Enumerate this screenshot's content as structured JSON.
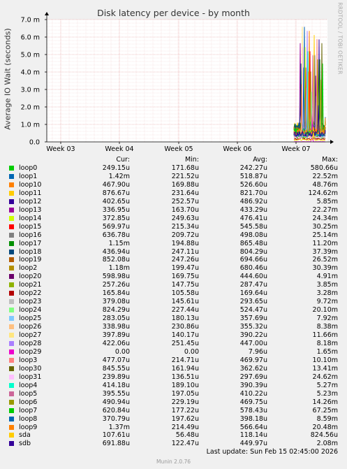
{
  "chart_data": {
    "type": "area",
    "title": "Disk latency per device - by month",
    "ylabel": "Average IO Wait (seconds)",
    "ylim": [
      0,
      0.007
    ],
    "y_ticks": [
      {
        "value": 0,
        "label": "0.0"
      },
      {
        "value": 0.001,
        "label": "1.0 m"
      },
      {
        "value": 0.002,
        "label": "2.0 m"
      },
      {
        "value": 0.003,
        "label": "3.0 m"
      },
      {
        "value": 0.004,
        "label": "4.0 m"
      },
      {
        "value": 0.005,
        "label": "5.0 m"
      },
      {
        "value": 0.006,
        "label": "6.0 m"
      },
      {
        "value": 0.007,
        "label": "7.0 m"
      }
    ],
    "x_ticks": [
      "Week 03",
      "Week 04",
      "Week 05",
      "Week 06",
      "Week 07"
    ],
    "grid": true,
    "legend_position": "bottom",
    "columns": [
      "Cur:",
      "Min:",
      "Avg:",
      "Max:"
    ],
    "series": [
      {
        "name": "loop0",
        "color": "#00cc00",
        "cur": "249.15u",
        "min": "171.68u",
        "avg": "242.27u",
        "max": "580.66u"
      },
      {
        "name": "loop1",
        "color": "#0066b3",
        "cur": "1.42m",
        "min": "221.52u",
        "avg": "518.87u",
        "max": "22.52m"
      },
      {
        "name": "loop10",
        "color": "#ff8000",
        "cur": "467.90u",
        "min": "169.88u",
        "avg": "526.60u",
        "max": "48.76m"
      },
      {
        "name": "loop11",
        "color": "#ffcc00",
        "cur": "876.67u",
        "min": "231.64u",
        "avg": "821.70u",
        "max": "124.62m"
      },
      {
        "name": "loop12",
        "color": "#330099",
        "cur": "402.65u",
        "min": "252.57u",
        "avg": "486.92u",
        "max": "5.85m"
      },
      {
        "name": "loop13",
        "color": "#990099",
        "cur": "336.95u",
        "min": "163.70u",
        "avg": "433.29u",
        "max": "22.27m"
      },
      {
        "name": "loop14",
        "color": "#ccff00",
        "cur": "372.85u",
        "min": "249.63u",
        "avg": "476.41u",
        "max": "24.34m"
      },
      {
        "name": "loop15",
        "color": "#ff0000",
        "cur": "569.97u",
        "min": "215.34u",
        "avg": "545.58u",
        "max": "30.25m"
      },
      {
        "name": "loop16",
        "color": "#808080",
        "cur": "636.78u",
        "min": "209.72u",
        "avg": "498.08u",
        "max": "25.14m"
      },
      {
        "name": "loop17",
        "color": "#008f00",
        "cur": "1.15m",
        "min": "194.88u",
        "avg": "865.48u",
        "max": "11.20m"
      },
      {
        "name": "loop18",
        "color": "#00487d",
        "cur": "436.94u",
        "min": "247.11u",
        "avg": "804.29u",
        "max": "37.39m"
      },
      {
        "name": "loop19",
        "color": "#b35a00",
        "cur": "852.08u",
        "min": "247.26u",
        "avg": "694.66u",
        "max": "26.52m"
      },
      {
        "name": "loop2",
        "color": "#b38f00",
        "cur": "1.18m",
        "min": "199.47u",
        "avg": "680.46u",
        "max": "30.39m"
      },
      {
        "name": "loop20",
        "color": "#6b006b",
        "cur": "598.98u",
        "min": "169.75u",
        "avg": "444.60u",
        "max": "4.91m"
      },
      {
        "name": "loop21",
        "color": "#8fb300",
        "cur": "257.26u",
        "min": "147.75u",
        "avg": "287.47u",
        "max": "3.85m"
      },
      {
        "name": "loop22",
        "color": "#b30000",
        "cur": "165.84u",
        "min": "105.58u",
        "avg": "169.64u",
        "max": "3.28m"
      },
      {
        "name": "loop23",
        "color": "#bebebe",
        "cur": "379.08u",
        "min": "145.61u",
        "avg": "293.65u",
        "max": "9.72m"
      },
      {
        "name": "loop24",
        "color": "#80ff80",
        "cur": "824.29u",
        "min": "227.44u",
        "avg": "524.47u",
        "max": "20.10m"
      },
      {
        "name": "loop25",
        "color": "#80c9ff",
        "cur": "283.05u",
        "min": "180.13u",
        "avg": "357.69u",
        "max": "7.92m"
      },
      {
        "name": "loop26",
        "color": "#ffc080",
        "cur": "338.98u",
        "min": "230.86u",
        "avg": "355.32u",
        "max": "8.38m"
      },
      {
        "name": "loop27",
        "color": "#ffe680",
        "cur": "397.89u",
        "min": "140.17u",
        "avg": "390.22u",
        "max": "11.66m"
      },
      {
        "name": "loop28",
        "color": "#aa80ff",
        "cur": "422.06u",
        "min": "251.45u",
        "avg": "447.00u",
        "max": "8.18m"
      },
      {
        "name": "loop29",
        "color": "#ee00cc",
        "cur": "0.00",
        "min": "0.00",
        "avg": "7.96u",
        "max": "1.65m"
      },
      {
        "name": "loop3",
        "color": "#ff8080",
        "cur": "477.07u",
        "min": "214.71u",
        "avg": "469.97u",
        "max": "10.10m"
      },
      {
        "name": "loop30",
        "color": "#666600",
        "cur": "845.55u",
        "min": "161.94u",
        "avg": "362.62u",
        "max": "13.41m"
      },
      {
        "name": "loop31",
        "color": "#ffbfff",
        "cur": "239.89u",
        "min": "136.51u",
        "avg": "297.69u",
        "max": "24.62m"
      },
      {
        "name": "loop4",
        "color": "#00ffcc",
        "cur": "414.18u",
        "min": "189.10u",
        "avg": "390.39u",
        "max": "5.27m"
      },
      {
        "name": "loop5",
        "color": "#cc6699",
        "cur": "395.55u",
        "min": "197.05u",
        "avg": "410.22u",
        "max": "5.23m"
      },
      {
        "name": "loop6",
        "color": "#999900",
        "cur": "490.94u",
        "min": "229.19u",
        "avg": "469.75u",
        "max": "14.26m"
      },
      {
        "name": "loop7",
        "color": "#00cc00",
        "cur": "620.84u",
        "min": "177.22u",
        "avg": "578.43u",
        "max": "67.25m"
      },
      {
        "name": "loop8",
        "color": "#0066b3",
        "cur": "370.79u",
        "min": "197.62u",
        "avg": "398.18u",
        "max": "8.59m"
      },
      {
        "name": "loop9",
        "color": "#ff8000",
        "cur": "1.37m",
        "min": "214.49u",
        "avg": "566.64u",
        "max": "20.48m"
      },
      {
        "name": "sda",
        "color": "#ffcc00",
        "cur": "107.61u",
        "min": "56.48u",
        "avg": "118.14u",
        "max": "824.56u"
      },
      {
        "name": "sdb",
        "color": "#330099",
        "cur": "691.88u",
        "min": "122.47u",
        "avg": "449.97u",
        "max": "2.08m"
      }
    ]
  },
  "watermark": "RRDTOOL / TOBI OETIKER",
  "last_update": "Last update: Sun Feb 15 02:45:00 2026",
  "munin_version": "Munin 2.0.76"
}
